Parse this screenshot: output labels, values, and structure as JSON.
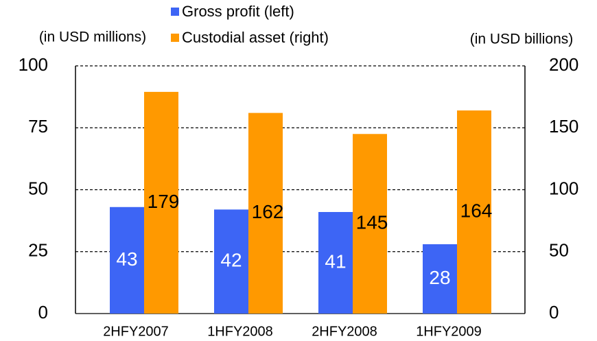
{
  "chart_data": {
    "type": "bar",
    "categories": [
      "2HFY2007",
      "1HFY2008",
      "2HFY2008",
      "1HFY2009"
    ],
    "series": [
      {
        "name": "Gross profit (left)",
        "color": "#3d65f5",
        "values": [
          43,
          42,
          41,
          28
        ]
      },
      {
        "name": "Custodial asset (right)",
        "color": "#ff9900",
        "values": [
          179,
          162,
          145,
          164
        ],
        "axis": "y2"
      }
    ],
    "y_label": "(in USD millions)",
    "y2_label": "(in USD billions)",
    "ylim": [
      0,
      100
    ],
    "yticks": [
      0,
      25,
      50,
      75,
      100
    ],
    "y2lim": [
      0,
      200
    ],
    "y2ticks": [
      0,
      50,
      100,
      150,
      200
    ],
    "grid": true
  }
}
